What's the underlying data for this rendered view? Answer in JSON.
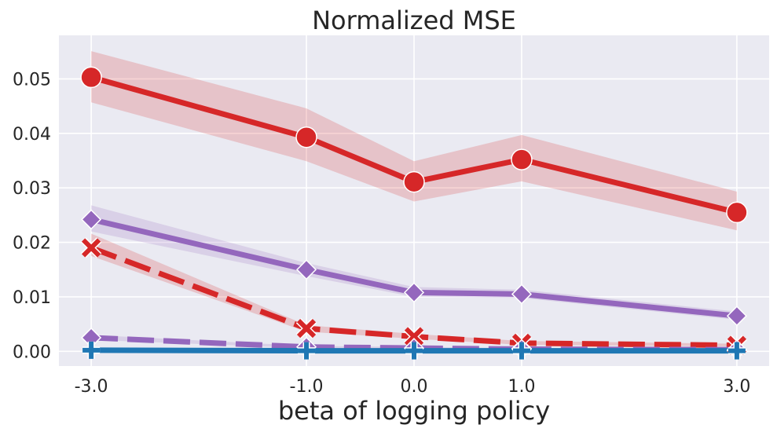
{
  "chart_data": {
    "type": "line",
    "title": "Normalized MSE",
    "xlabel": "beta of logging policy",
    "ylabel": "",
    "x": [
      -3.0,
      -1.0,
      0.0,
      1.0,
      3.0
    ],
    "x_tick_labels": [
      "-3.0",
      "-1.0",
      "0.0",
      "1.0",
      "3.0"
    ],
    "y_ticks": [
      0.0,
      0.01,
      0.02,
      0.03,
      0.04,
      0.05
    ],
    "y_tick_labels": [
      "0.00",
      "0.01",
      "0.02",
      "0.03",
      "0.04",
      "0.05"
    ],
    "xlim": [
      -3.3,
      3.3
    ],
    "ylim": [
      -0.0027,
      0.058
    ],
    "grid": true,
    "background": "#eaeaf2",
    "series": [
      {
        "color": "#d62728",
        "marker": "circle",
        "linestyle": "solid",
        "values": [
          0.0503,
          0.0393,
          0.0311,
          0.0352,
          0.0255
        ],
        "lower": [
          0.0457,
          0.0349,
          0.0275,
          0.0312,
          0.0222
        ],
        "upper": [
          0.0551,
          0.0446,
          0.0349,
          0.0397,
          0.0293
        ]
      },
      {
        "color": "#9467bd",
        "marker": "diamond",
        "linestyle": "solid",
        "values": [
          0.0242,
          0.015,
          0.0108,
          0.0105,
          0.0065
        ],
        "lower": [
          0.022,
          0.0138,
          0.01,
          0.0098,
          0.0058
        ],
        "upper": [
          0.0268,
          0.0162,
          0.0118,
          0.0113,
          0.0073
        ]
      },
      {
        "color": "#d62728",
        "marker": "x",
        "linestyle": "dashed",
        "values": [
          0.019,
          0.0042,
          0.0027,
          0.0015,
          0.0011
        ],
        "lower": [
          0.0175,
          0.0036,
          0.0023,
          0.0012,
          0.0009
        ],
        "upper": [
          0.0216,
          0.0048,
          0.0032,
          0.0019,
          0.0014
        ]
      },
      {
        "color": "#9467bd",
        "marker": "diamond",
        "linestyle": "dashed",
        "values": [
          0.0025,
          0.0008,
          0.0006,
          0.0004,
          0.0003
        ],
        "lower": [
          0.0021,
          0.0006,
          0.0004,
          0.0003,
          0.0002
        ],
        "upper": [
          0.003,
          0.001,
          0.0008,
          0.0006,
          0.0005
        ]
      },
      {
        "color": "#1f77b4",
        "marker": "plus",
        "linestyle": "solid",
        "values": [
          0.0002,
          0.0001,
          0.0001,
          0.0001,
          0.0001
        ],
        "lower": [
          0.0001,
          0.0,
          0.0,
          0.0,
          0.0
        ],
        "upper": [
          0.0003,
          0.0002,
          0.0002,
          0.0002,
          0.0002
        ]
      }
    ]
  }
}
